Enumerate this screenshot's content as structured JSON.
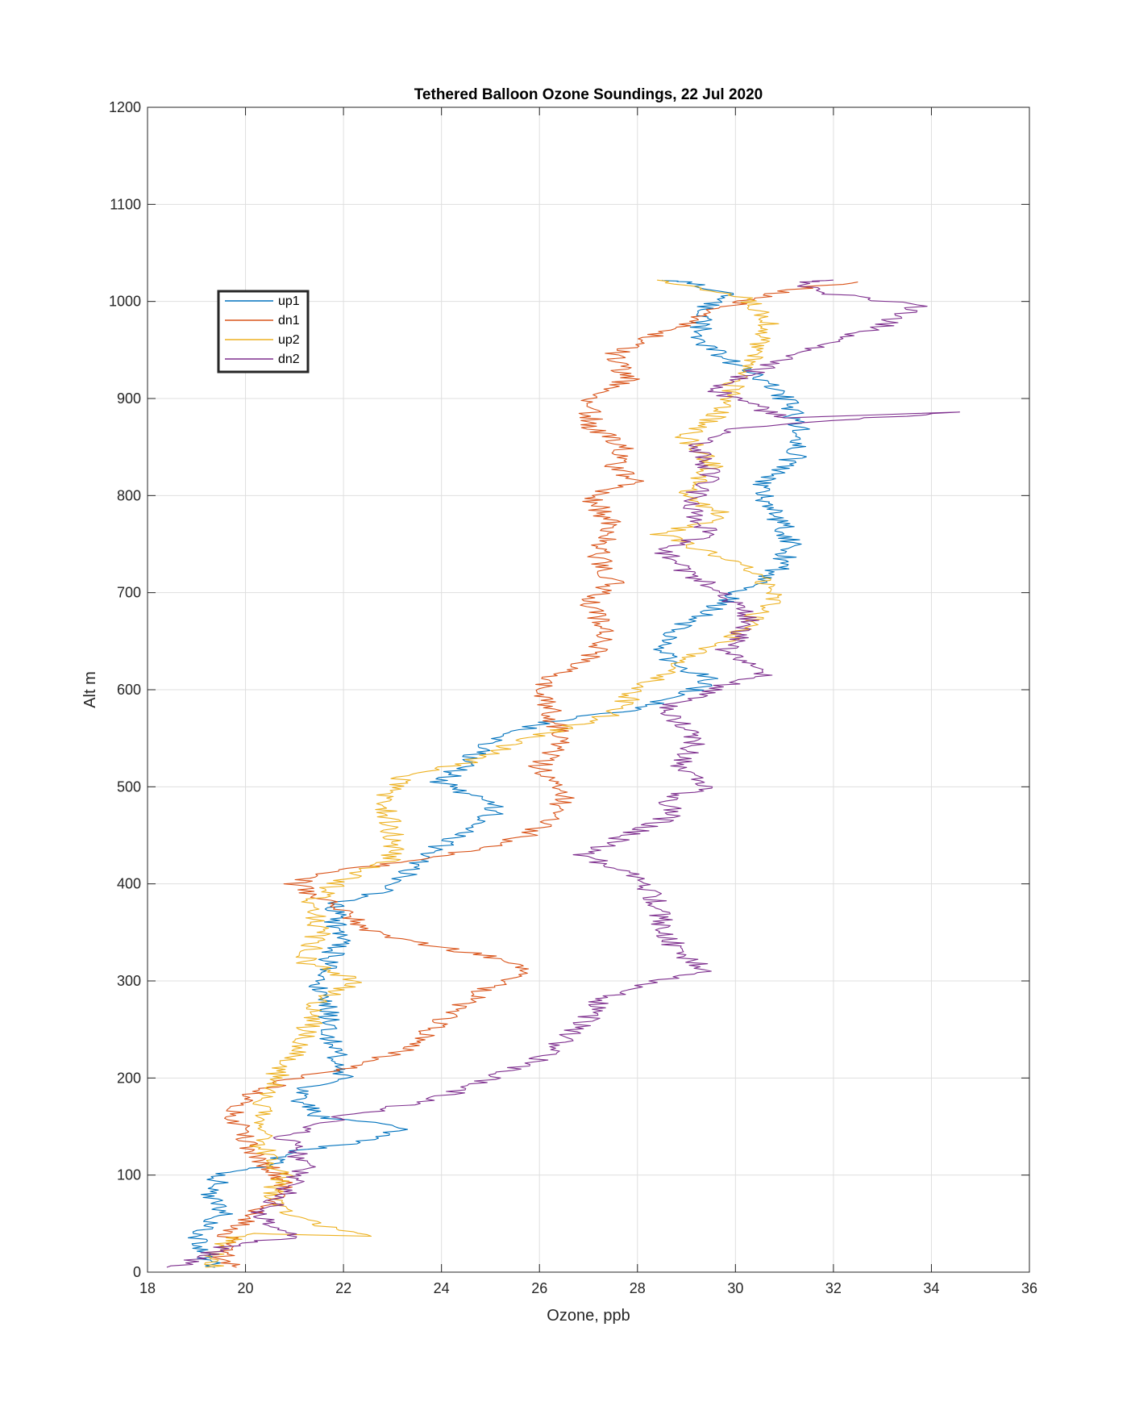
{
  "chart_data": {
    "type": "line",
    "title": "Tethered Balloon Ozone Soundings, 22 Jul 2020",
    "xlabel": "Ozone, ppb",
    "ylabel": "Alt m",
    "xlim": [
      18,
      36
    ],
    "ylim": [
      0,
      1200
    ],
    "xticks": [
      "18",
      "20",
      "22",
      "24",
      "26",
      "28",
      "30",
      "32",
      "34",
      "36"
    ],
    "yticks": [
      "0",
      "100",
      "200",
      "300",
      "400",
      "500",
      "600",
      "700",
      "800",
      "900",
      "1000",
      "1100",
      "1200"
    ],
    "grid": true,
    "legend_position": "top-left",
    "series": [
      {
        "name": "up1",
        "color": "#0072BD",
        "points": [
          [
            19.3,
            5
          ],
          [
            19.1,
            20
          ],
          [
            19.0,
            40
          ],
          [
            19.5,
            60
          ],
          [
            19.3,
            80
          ],
          [
            19.5,
            100
          ],
          [
            20.5,
            110
          ],
          [
            21.0,
            125
          ],
          [
            22.5,
            135
          ],
          [
            23.2,
            150
          ],
          [
            21.5,
            160
          ],
          [
            21.0,
            185
          ],
          [
            22.0,
            200
          ],
          [
            21.8,
            230
          ],
          [
            21.7,
            260
          ],
          [
            21.5,
            300
          ],
          [
            21.9,
            340
          ],
          [
            21.8,
            380
          ],
          [
            23.0,
            395
          ],
          [
            23.5,
            420
          ],
          [
            24.0,
            440
          ],
          [
            24.6,
            460
          ],
          [
            25.2,
            475
          ],
          [
            24.6,
            490
          ],
          [
            24.0,
            505
          ],
          [
            24.5,
            525
          ],
          [
            25.0,
            545
          ],
          [
            26.0,
            565
          ],
          [
            28.0,
            580
          ],
          [
            29.0,
            595
          ],
          [
            29.5,
            610
          ],
          [
            28.8,
            625
          ],
          [
            28.5,
            640
          ],
          [
            28.6,
            660
          ],
          [
            29.5,
            680
          ],
          [
            30.0,
            700
          ],
          [
            30.8,
            720
          ],
          [
            31.2,
            750
          ],
          [
            30.8,
            780
          ],
          [
            30.5,
            810
          ],
          [
            31.2,
            840
          ],
          [
            31.3,
            870
          ],
          [
            31.0,
            900
          ],
          [
            30.5,
            920
          ],
          [
            29.8,
            940
          ],
          [
            29.3,
            960
          ],
          [
            29.3,
            990
          ],
          [
            29.8,
            1010
          ],
          [
            29.0,
            1020
          ],
          [
            28.5,
            1022
          ]
        ]
      },
      {
        "name": "dn1",
        "color": "#D95319",
        "points": [
          [
            19.7,
            5
          ],
          [
            19.5,
            20
          ],
          [
            19.7,
            40
          ],
          [
            20.2,
            60
          ],
          [
            20.8,
            80
          ],
          [
            20.7,
            100
          ],
          [
            20.2,
            120
          ],
          [
            20.0,
            140
          ],
          [
            19.8,
            160
          ],
          [
            20.0,
            180
          ],
          [
            21.0,
            200
          ],
          [
            22.5,
            215
          ],
          [
            23.5,
            235
          ],
          [
            24.0,
            260
          ],
          [
            24.6,
            280
          ],
          [
            25.0,
            295
          ],
          [
            25.8,
            305
          ],
          [
            25.5,
            320
          ],
          [
            24.5,
            330
          ],
          [
            22.8,
            345
          ],
          [
            22.3,
            360
          ],
          [
            21.7,
            380
          ],
          [
            21.0,
            400
          ],
          [
            21.5,
            410
          ],
          [
            23.5,
            425
          ],
          [
            24.7,
            435
          ],
          [
            25.8,
            450
          ],
          [
            26.3,
            470
          ],
          [
            26.5,
            490
          ],
          [
            26.0,
            520
          ],
          [
            26.5,
            550
          ],
          [
            26.2,
            580
          ],
          [
            26.0,
            610
          ],
          [
            26.8,
            625
          ],
          [
            27.2,
            640
          ],
          [
            27.3,
            665
          ],
          [
            27.0,
            690
          ],
          [
            27.5,
            710
          ],
          [
            27.2,
            740
          ],
          [
            27.5,
            770
          ],
          [
            27.0,
            800
          ],
          [
            28.0,
            815
          ],
          [
            27.5,
            830
          ],
          [
            27.8,
            850
          ],
          [
            27.1,
            870
          ],
          [
            27.0,
            895
          ],
          [
            27.8,
            920
          ],
          [
            27.5,
            945
          ],
          [
            28.0,
            960
          ],
          [
            29.0,
            975
          ],
          [
            29.5,
            990
          ],
          [
            30.5,
            1005
          ],
          [
            31.5,
            1015
          ],
          [
            32.5,
            1020
          ]
        ]
      },
      {
        "name": "up2",
        "color": "#EDB120",
        "points": [
          [
            19.4,
            5
          ],
          [
            19.3,
            20
          ],
          [
            20.0,
            40
          ],
          [
            22.4,
            37
          ],
          [
            20.8,
            60
          ],
          [
            20.5,
            80
          ],
          [
            20.8,
            100
          ],
          [
            20.3,
            130
          ],
          [
            20.3,
            160
          ],
          [
            20.6,
            200
          ],
          [
            21.2,
            240
          ],
          [
            21.5,
            280
          ],
          [
            22.3,
            300
          ],
          [
            21.2,
            320
          ],
          [
            21.5,
            350
          ],
          [
            21.3,
            380
          ],
          [
            22.0,
            405
          ],
          [
            23.0,
            425
          ],
          [
            23.0,
            460
          ],
          [
            22.8,
            490
          ],
          [
            23.2,
            510
          ],
          [
            24.5,
            525
          ],
          [
            25.5,
            545
          ],
          [
            26.5,
            560
          ],
          [
            27.5,
            575
          ],
          [
            28.0,
            600
          ],
          [
            29.0,
            630
          ],
          [
            29.8,
            650
          ],
          [
            30.3,
            670
          ],
          [
            30.8,
            695
          ],
          [
            30.5,
            720
          ],
          [
            29.5,
            740
          ],
          [
            28.5,
            760
          ],
          [
            29.8,
            780
          ],
          [
            29.0,
            800
          ],
          [
            29.5,
            830
          ],
          [
            29.0,
            860
          ],
          [
            29.8,
            890
          ],
          [
            30.0,
            920
          ],
          [
            30.5,
            950
          ],
          [
            30.7,
            980
          ],
          [
            30.2,
            1005
          ],
          [
            29.0,
            1015
          ],
          [
            28.4,
            1022
          ]
        ]
      },
      {
        "name": "dn2",
        "color": "#7E2F8E",
        "points": [
          [
            18.6,
            5
          ],
          [
            19.3,
            20
          ],
          [
            19.8,
            30
          ],
          [
            20.9,
            35
          ],
          [
            20.3,
            60
          ],
          [
            20.8,
            80
          ],
          [
            21.2,
            110
          ],
          [
            20.8,
            140
          ],
          [
            22.0,
            160
          ],
          [
            24.0,
            180
          ],
          [
            25.0,
            200
          ],
          [
            26.0,
            220
          ],
          [
            26.5,
            240
          ],
          [
            27.0,
            260
          ],
          [
            27.2,
            280
          ],
          [
            28.3,
            300
          ],
          [
            29.5,
            310
          ],
          [
            28.8,
            330
          ],
          [
            28.5,
            360
          ],
          [
            28.3,
            390
          ],
          [
            27.8,
            410
          ],
          [
            26.9,
            430
          ],
          [
            27.8,
            450
          ],
          [
            28.7,
            470
          ],
          [
            28.6,
            490
          ],
          [
            29.5,
            500
          ],
          [
            28.8,
            520
          ],
          [
            29.2,
            550
          ],
          [
            28.5,
            580
          ],
          [
            29.5,
            600
          ],
          [
            30.5,
            615
          ],
          [
            29.8,
            640
          ],
          [
            30.3,
            670
          ],
          [
            29.8,
            700
          ],
          [
            29.0,
            720
          ],
          [
            28.5,
            745
          ],
          [
            29.5,
            760
          ],
          [
            29.0,
            790
          ],
          [
            29.5,
            820
          ],
          [
            29.2,
            850
          ],
          [
            30.0,
            870
          ],
          [
            34.5,
            886
          ],
          [
            31.0,
            880
          ],
          [
            30.0,
            900
          ],
          [
            29.5,
            910
          ],
          [
            30.5,
            930
          ],
          [
            31.5,
            950
          ],
          [
            33.0,
            975
          ],
          [
            33.7,
            995
          ],
          [
            32.5,
            1005
          ],
          [
            31.5,
            1010
          ],
          [
            31.5,
            1020
          ],
          [
            32.0,
            1022
          ]
        ]
      }
    ]
  }
}
